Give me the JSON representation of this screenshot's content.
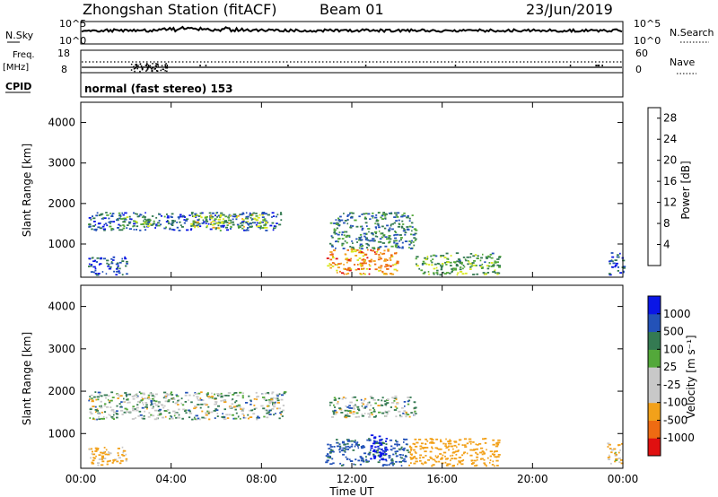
{
  "header": {
    "station": "Zhongshan Station (fitACF)",
    "beam": "Beam 01",
    "date": "23/Jun/2019"
  },
  "noise_panel": {
    "left_label": "N.Sky",
    "right_label": "N.Search",
    "ticks_left": [
      "10^5",
      "10^0"
    ],
    "ticks_right": [
      "10^5",
      "10^0"
    ]
  },
  "freq_panel": {
    "left_label_1": "Freq.",
    "left_label_2": "[MHz]",
    "ticks_left": [
      "18",
      "8"
    ],
    "right_label": "Nave",
    "ticks_right": [
      "60",
      "0"
    ]
  },
  "cpid_panel": {
    "label": "CPID",
    "text": "normal (fast stereo) 153"
  },
  "colors": {
    "power_scale": [
      "#0a16e6",
      "#2352b8",
      "#347a52",
      "#53a83a",
      "#d8e81c",
      "#f2a11a",
      "#ee6b12",
      "#e01010"
    ],
    "velocity_scale": [
      "#e01010",
      "#ee6b12",
      "#f2a11a",
      "#c8c8c8",
      "#c8c8c8",
      "#53a83a",
      "#347a52",
      "#2352b8",
      "#0a16e6"
    ],
    "ground_scatter": "#c8c8c8"
  },
  "chart_data": [
    {
      "type": "heatmap",
      "name": "power",
      "xlabel": "",
      "ylabel": "Slant Range [km]",
      "xlim": [
        "00:00",
        "24:00"
      ],
      "ylim": [
        180,
        4500
      ],
      "yticks": [
        "1000",
        "2000",
        "3000",
        "4000"
      ],
      "colorbar": {
        "label": "Power [dB]",
        "ticks": [
          "4",
          "8",
          "12",
          "16",
          "20",
          "24",
          "28"
        ],
        "range": [
          0,
          30
        ]
      },
      "regions": [
        {
          "t0": 0.3,
          "t1": 8.9,
          "r0": 1350,
          "r1": 1800,
          "level": 7
        },
        {
          "t0": 1.8,
          "t1": 3.2,
          "r0": 1450,
          "r1": 1700,
          "level": 14
        },
        {
          "t0": 4.8,
          "t1": 8.2,
          "r0": 1400,
          "r1": 1750,
          "level": 15
        },
        {
          "t0": 0.3,
          "t1": 2.0,
          "r0": 250,
          "r1": 700,
          "level": 6
        },
        {
          "t0": 10.8,
          "t1": 14.0,
          "r0": 250,
          "r1": 900,
          "level": 22
        },
        {
          "t0": 11.0,
          "t1": 14.8,
          "r0": 900,
          "r1": 1800,
          "level": 9
        },
        {
          "t0": 14.8,
          "t1": 18.5,
          "r0": 250,
          "r1": 800,
          "level": 12
        },
        {
          "t0": 23.3,
          "t1": 24.0,
          "r0": 250,
          "r1": 800,
          "level": 6
        }
      ]
    },
    {
      "type": "heatmap",
      "name": "velocity",
      "xlabel": "Time UT",
      "ylabel": "Slant Range [km]",
      "xlim": [
        "00:00",
        "24:00"
      ],
      "ylim": [
        180,
        4500
      ],
      "yticks": [
        "1000",
        "2000",
        "3000",
        "4000"
      ],
      "xticks": [
        "00:00",
        "04:00",
        "08:00",
        "12:00",
        "16:00",
        "20:00",
        "00:00"
      ],
      "colorbar": {
        "label": "Velocity [m s⁻¹]",
        "ticks": [
          "1000",
          "500",
          "100",
          "25",
          "-25",
          "-100",
          "-500",
          "-1000"
        ]
      },
      "regions": [
        {
          "t0": 0.3,
          "t1": 9.0,
          "r0": 1350,
          "r1": 2000,
          "value": 0
        },
        {
          "t0": 0.3,
          "t1": 2.0,
          "r0": 250,
          "r1": 700,
          "value": -150
        },
        {
          "t0": 10.8,
          "t1": 14.5,
          "r0": 250,
          "r1": 900,
          "value": 150
        },
        {
          "t0": 12.8,
          "t1": 13.5,
          "r0": 300,
          "r1": 1000,
          "value": 900
        },
        {
          "t0": 11.0,
          "t1": 14.8,
          "r0": 1400,
          "r1": 1900,
          "value": 0
        },
        {
          "t0": 14.5,
          "t1": 18.5,
          "r0": 250,
          "r1": 900,
          "value": -300
        },
        {
          "t0": 23.3,
          "t1": 24.0,
          "r0": 300,
          "r1": 800,
          "value": -100
        }
      ]
    }
  ]
}
